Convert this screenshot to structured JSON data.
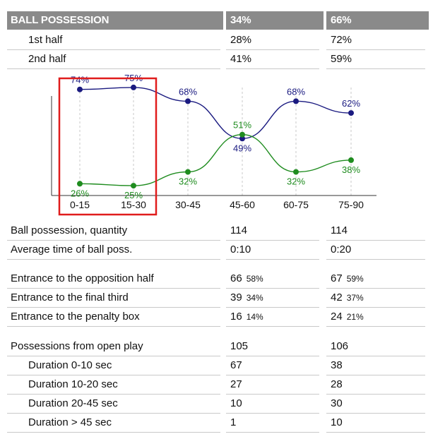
{
  "header": {
    "title": "BALL POSSESSION",
    "team1": "34%",
    "team2": "66%"
  },
  "halves": [
    {
      "label": "1st half",
      "team1": "28%",
      "team2": "72%"
    },
    {
      "label": "2nd half",
      "team1": "41%",
      "team2": "59%"
    }
  ],
  "chart_data": {
    "type": "line",
    "categories": [
      "0-15",
      "15-30",
      "30-45",
      "45-60",
      "60-75",
      "75-90"
    ],
    "series": [
      {
        "values": [
          74,
          75,
          68,
          49,
          68,
          62
        ],
        "color": "#1a1a80"
      },
      {
        "values": [
          26,
          25,
          32,
          51,
          32,
          38
        ],
        "color": "#1f8c1f"
      }
    ],
    "value_labels": {
      "series0": [
        "74%",
        "75%",
        "68%",
        "49%",
        "68%",
        "62%"
      ],
      "series1": [
        "26%",
        "25%",
        "32%",
        "51%",
        "32%",
        "38%"
      ]
    },
    "ylim": [
      20,
      80
    ],
    "highlight": {
      "from_index": 0,
      "to_index": 1,
      "color": "#e01c1c"
    },
    "grid": "dashed vertical"
  },
  "stats": [
    {
      "label": "Ball possession, quantity",
      "team1": "114",
      "team1_pct": "",
      "team2": "114",
      "team2_pct": ""
    },
    {
      "label": "Average time of ball poss.",
      "team1": "0:10",
      "team1_pct": "",
      "team2": "0:20",
      "team2_pct": ""
    },
    {
      "label": "Entrance to the opposition half",
      "team1": "66",
      "team1_pct": "58%",
      "team2": "67",
      "team2_pct": "59%"
    },
    {
      "label": "Entrance to the final third",
      "team1": "39",
      "team1_pct": "34%",
      "team2": "42",
      "team2_pct": "37%"
    },
    {
      "label": "Entrance to the penalty box",
      "team1": "16",
      "team1_pct": "14%",
      "team2": "24",
      "team2_pct": "21%"
    },
    {
      "label": "Possessions from open play",
      "team1": "105",
      "team1_pct": "",
      "team2": "106",
      "team2_pct": ""
    },
    {
      "label": "Duration  0-10 sec",
      "team1": "67",
      "team1_pct": "",
      "team2": "38",
      "team2_pct": ""
    },
    {
      "label": "Duration  10-20 sec",
      "team1": "27",
      "team1_pct": "",
      "team2": "28",
      "team2_pct": ""
    },
    {
      "label": "Duration  20-45 sec",
      "team1": "10",
      "team1_pct": "",
      "team2": "30",
      "team2_pct": ""
    },
    {
      "label": "Duration  > 45 sec",
      "team1": "1",
      "team1_pct": "",
      "team2": "10",
      "team2_pct": ""
    }
  ]
}
